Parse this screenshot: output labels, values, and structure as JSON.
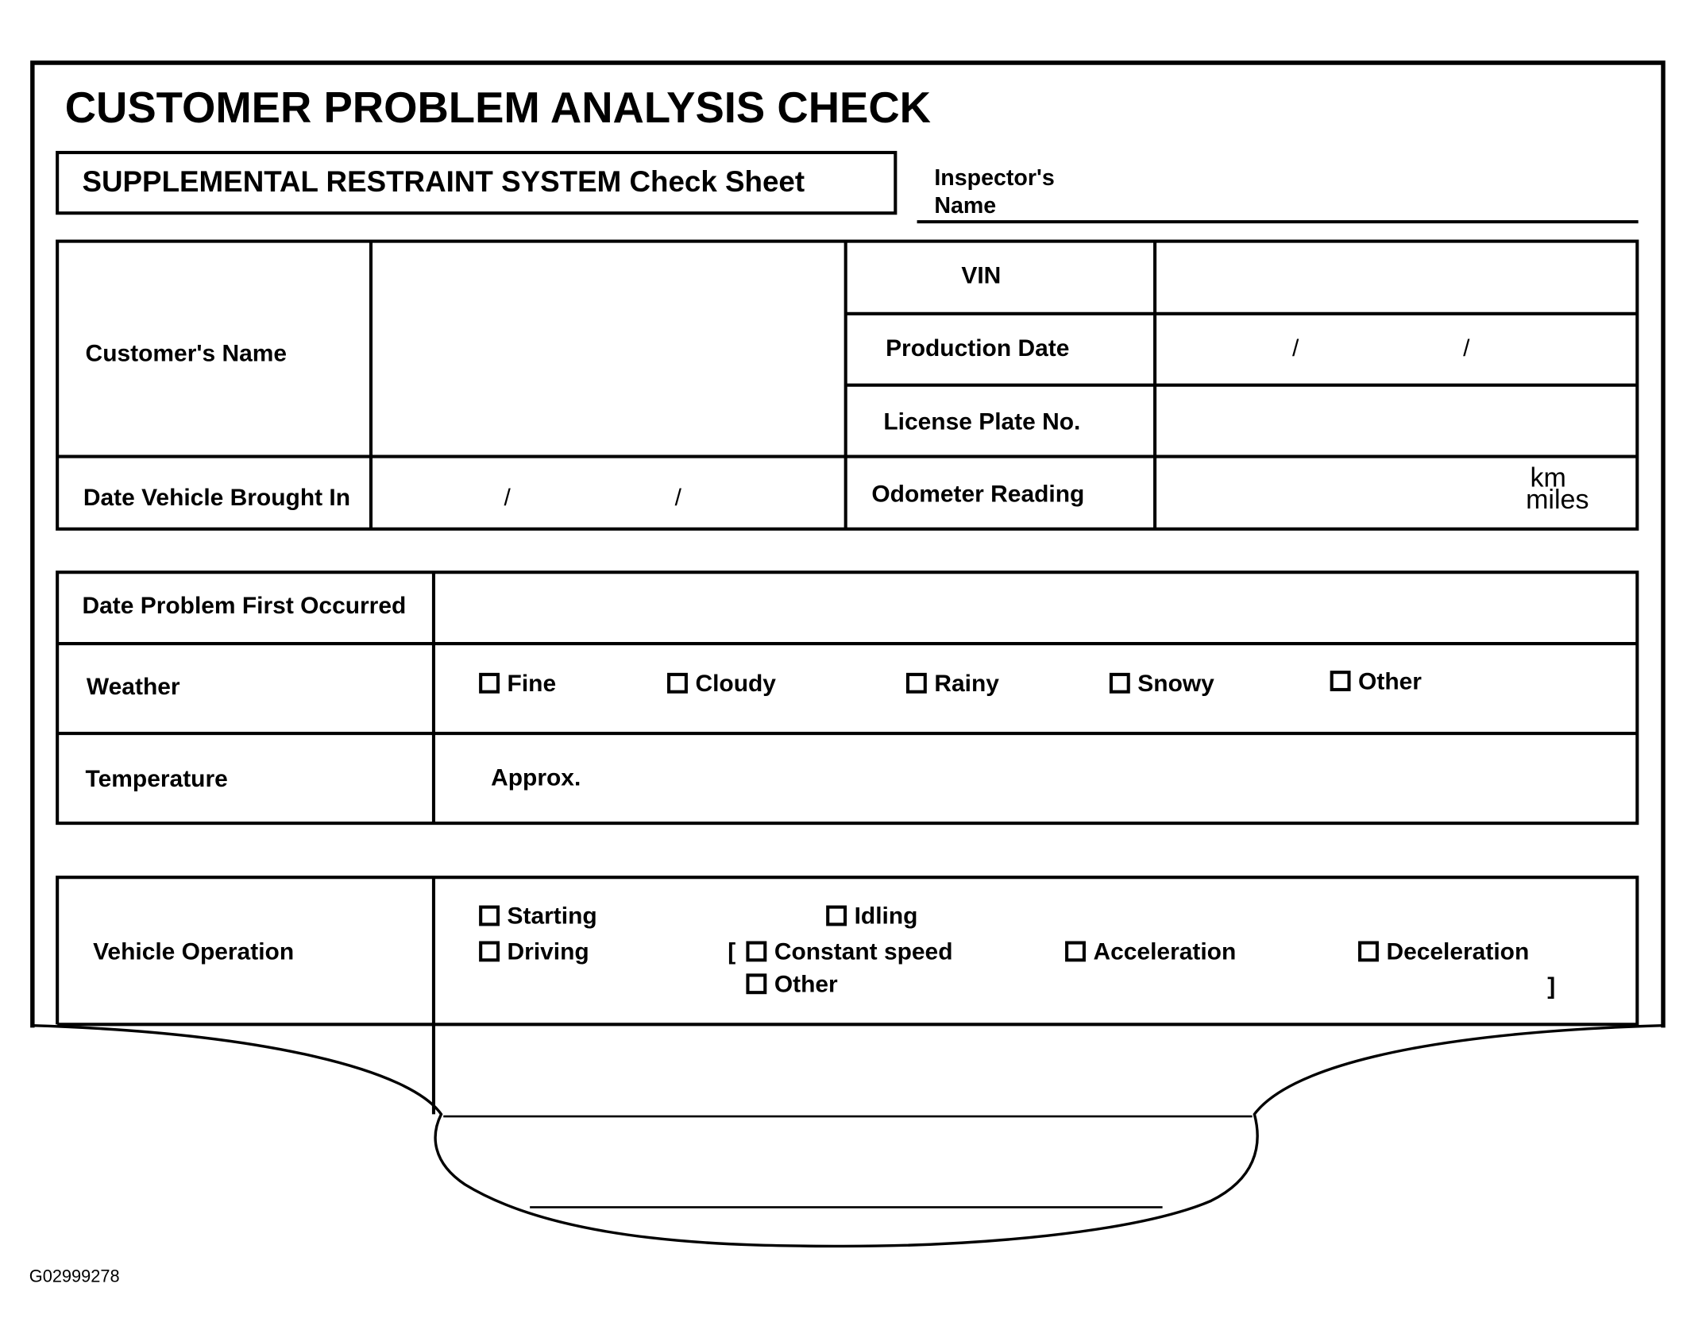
{
  "header": {
    "title": "CUSTOMER PROBLEM ANALYSIS CHECK",
    "subtitle": "SUPPLEMENTAL RESTRAINT SYSTEM Check Sheet",
    "inspector_label_1": "Inspector's",
    "inspector_label_2": "Name"
  },
  "vehicle_info": {
    "customer_name": "Customer's Name",
    "date_brought_in": "Date Vehicle Brought In",
    "vin": "VIN",
    "production_date": "Production Date",
    "license_plate": "License Plate No.",
    "odometer": "Odometer Reading",
    "slash": "/",
    "unit_km": "km",
    "unit_miles": "miles"
  },
  "conditions": {
    "date_first_occurred": "Date Problem First Occurred",
    "weather_label": "Weather",
    "weather_options": [
      "Fine",
      "Cloudy",
      "Rainy",
      "Snowy",
      "Other"
    ],
    "temperature_label": "Temperature",
    "temperature_prefix": "Approx."
  },
  "operation": {
    "label": "Vehicle Operation",
    "options": [
      "Starting",
      "Idling",
      "Driving",
      "Constant speed",
      "Acceleration",
      "Deceleration",
      "Other"
    ],
    "bracket_open": "[",
    "bracket_close": "]"
  },
  "figure_id": "G02999278"
}
